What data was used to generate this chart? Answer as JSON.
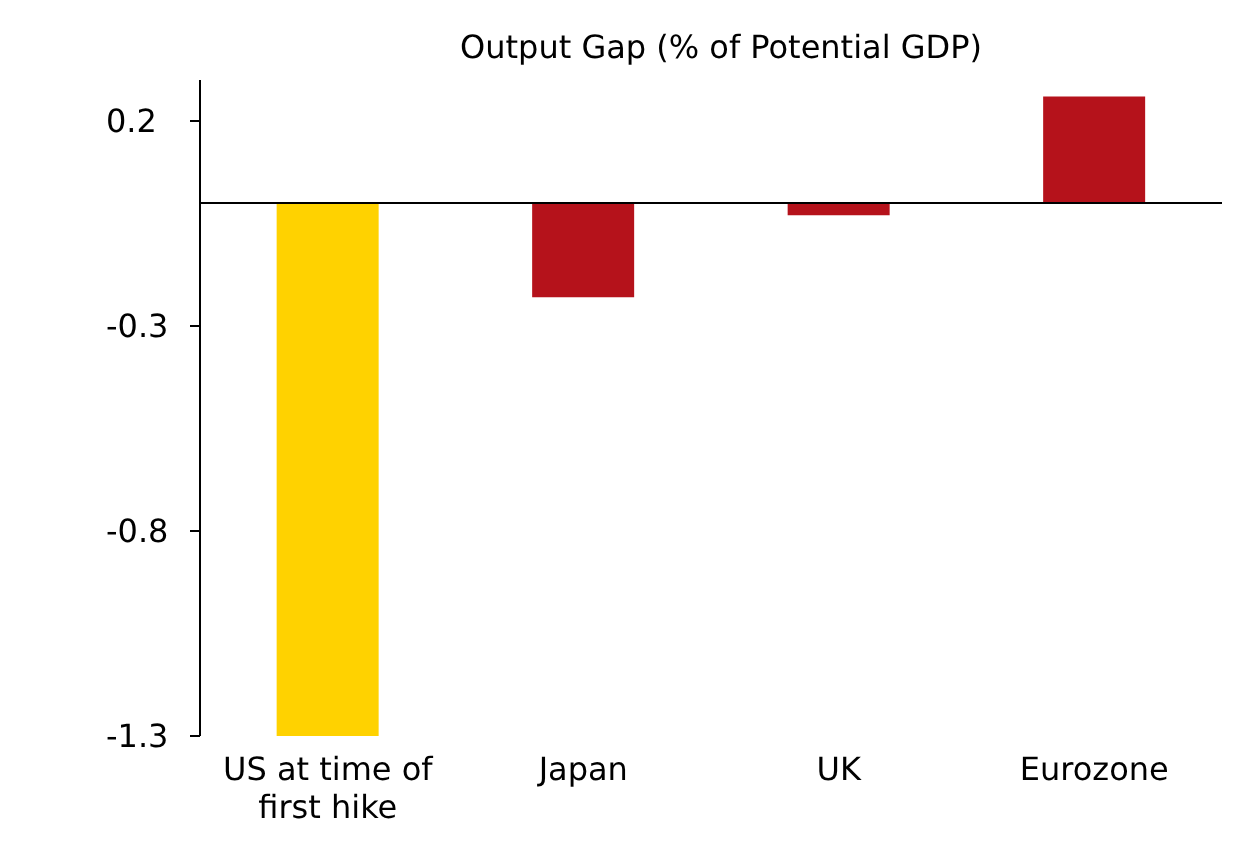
{
  "chart_data": {
    "type": "bar",
    "title": "Output Gap (% of Potential GDP)",
    "categories": [
      "US at time of first hike",
      "Japan",
      "UK",
      "Eurozone"
    ],
    "values": [
      -1.3,
      -0.23,
      -0.03,
      0.26
    ],
    "colors": [
      "#ffd200",
      "#b5121b",
      "#b5121b",
      "#b5121b"
    ],
    "ylim": [
      -1.3,
      0.3
    ],
    "yticks": [
      0.2,
      -0.3,
      -0.8,
      -1.3
    ],
    "grid": false,
    "legend": false
  }
}
